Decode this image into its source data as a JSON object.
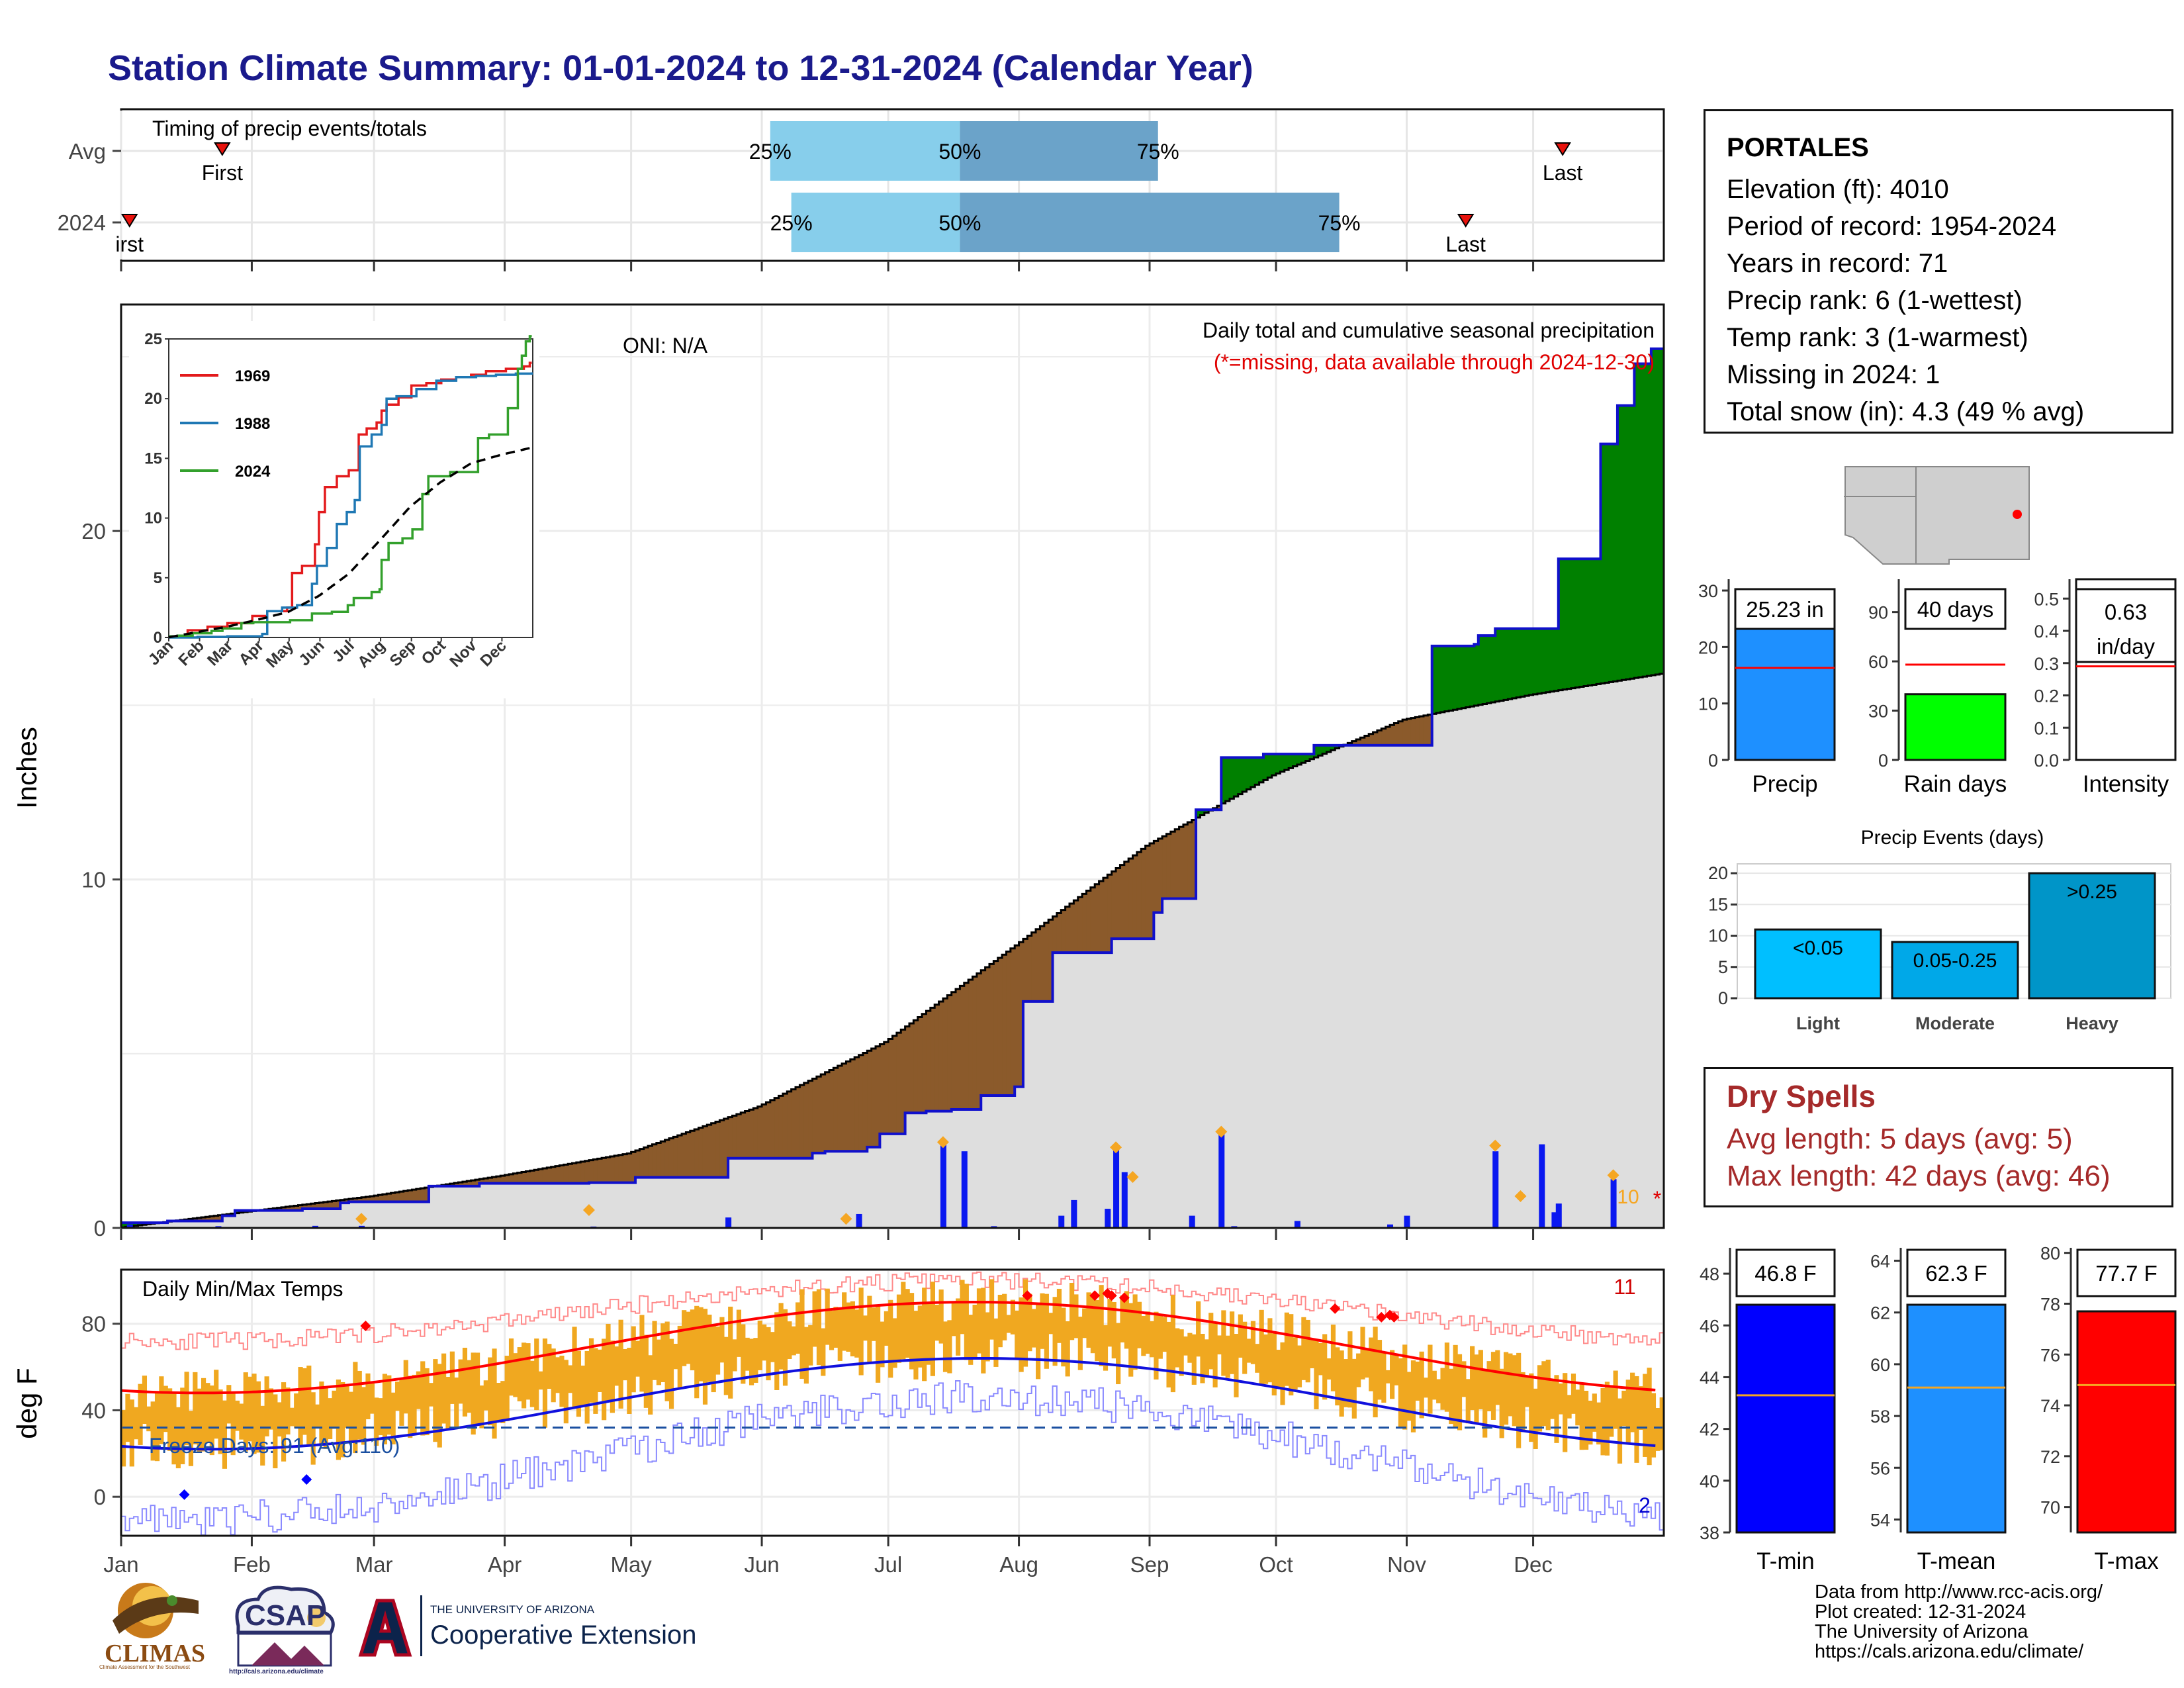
{
  "title": "Station Climate Summary: 01-01-2024 to 12-31-2024 (Calendar Year)",
  "months": [
    "Jan",
    "Feb",
    "Mar",
    "Apr",
    "May",
    "Jun",
    "Jul",
    "Aug",
    "Sep",
    "Oct",
    "Nov",
    "Dec"
  ],
  "timing": {
    "label": "Timing of precip events/totals",
    "rows": [
      "Avg",
      "2024"
    ],
    "avg": {
      "first_doy": 25,
      "last_doy": 343,
      "p25_doy": 155,
      "p50_doy": 200,
      "p75_doy": 247,
      "p25": "25%",
      "p50": "50%",
      "p75": "75%",
      "first": "First",
      "last": "Last"
    },
    "y2024": {
      "first_doy": 3,
      "last_doy": 320,
      "p25_doy": 160,
      "p50_doy": 200,
      "p75_doy": 290,
      "p25": "25%",
      "p50": "50%",
      "p75": "75%",
      "first": "irst",
      "last": "Last"
    },
    "colors": {
      "light": "#87ceeb",
      "dark": "#6ba3c9",
      "marker": "#e8120c"
    }
  },
  "precip": {
    "ylabel": "Inches",
    "oni": "ONI: N/A",
    "label1": "Daily total and cumulative seasonal precipitation",
    "label2": "(*=missing, data available through 2024-12-30)",
    "extreme_count": "10",
    "missing_mark": "*",
    "colors": {
      "cum": "#008000",
      "avg": "#dedede",
      "daily": "#0a18f0",
      "orange": "#f5a623",
      "line": "#1010cc"
    }
  },
  "inset": {
    "legend": [
      "1969",
      "1988",
      "2024"
    ],
    "colors": {
      "1969": "#e31a1c",
      "1988": "#1f78b4",
      "2024": "#33a02c"
    },
    "months": [
      "Jan",
      "Feb",
      "Mar",
      "Apr",
      "May",
      "Jun",
      "Jul",
      "Aug",
      "Sep",
      "Oct",
      "Nov",
      "Dec"
    ]
  },
  "temps": {
    "ylabel": "deg F",
    "label": "Daily Min/Max Temps",
    "freeze": "Freeze Days: 91 (Avg:110)",
    "hot_count": "11",
    "cold_count": "2",
    "colors": {
      "bar": "#f0a820",
      "avgmax": "#ff0000",
      "avgmin": "#1010dd",
      "recmax": "#ff8a8a",
      "recmin": "#8a8aff",
      "freeze": "#1a4fa0"
    }
  },
  "station": {
    "name": "PORTALES",
    "lines": [
      "Elevation (ft): 4010",
      "Period of record: 1954-2024",
      "Years in record: 71",
      "Precip rank: 6 (1-wettest)",
      "Temp rank: 3 (1-warmest)",
      "Missing in 2024: 1",
      "Total snow (in): 4.3 (49 % avg)"
    ]
  },
  "summary_bars": [
    {
      "label": "Precip",
      "value_text": "25.23 in",
      "value": 25.23,
      "avg": 16.3,
      "ymax": 32,
      "ticks": [
        0,
        10,
        20,
        30
      ],
      "color": "#1e90ff"
    },
    {
      "label": "Rain days",
      "value_text": "40 days",
      "value": 40,
      "avg": 58,
      "ymax": 110,
      "ticks": [
        0,
        30,
        60,
        90
      ],
      "color": "#00ff00"
    },
    {
      "label": "Intensity",
      "value_text": "0.63",
      "value_text2": "in/day",
      "value": 0.63,
      "avg": 0.29,
      "ymax": 0.56,
      "ticks": [
        0.0,
        0.1,
        0.2,
        0.3,
        0.4,
        0.5
      ],
      "color": "#ffffff"
    }
  ],
  "events": {
    "title": "Precip Events (days)",
    "bars": [
      {
        "label": "Light",
        "tag": "<0.05",
        "value": 11,
        "color": "#00bfff"
      },
      {
        "label": "Moderate",
        "tag": "0.05-0.25",
        "value": 9,
        "color": "#00a8e8"
      },
      {
        "label": "Heavy",
        "tag": ">0.25",
        "value": 20,
        "color": "#0095c8"
      }
    ],
    "ticks": [
      0,
      5,
      10,
      15,
      20
    ]
  },
  "dry_spells": {
    "title": "Dry Spells",
    "avg_line": "Avg length: 5 days (avg: 5)",
    "max_line": "Max length: 42 days (avg: 46)"
  },
  "temp_bars": [
    {
      "label": "T-min",
      "value_text": "46.8 F",
      "value": 46.8,
      "avg": 43.3,
      "ymin": 38,
      "ymax": 49,
      "ticks": [
        38,
        40,
        42,
        44,
        46,
        48
      ],
      "color": "#0000ff"
    },
    {
      "label": "T-mean",
      "value_text": "62.3 F",
      "value": 62.3,
      "avg": 59.1,
      "ymin": 53.5,
      "ymax": 64.5,
      "ticks": [
        54,
        56,
        58,
        60,
        62,
        64
      ],
      "color": "#1e90ff"
    },
    {
      "label": "T-max",
      "value_text": "77.7 F",
      "value": 77.7,
      "avg": 74.8,
      "ymin": 69,
      "ymax": 80.2,
      "ticks": [
        70,
        72,
        74,
        76,
        78,
        80
      ],
      "color": "#ff0000"
    }
  ],
  "footer": [
    "Data from http://www.rcc-acis.org/",
    "Plot created: 12-31-2024",
    "The University of Arizona",
    "https://cals.arizona.edu/climate/"
  ],
  "logos": {
    "climas": "CLIMAS",
    "climas_sub": "Climate Assessment for the Southwest",
    "csap": "CSAP",
    "csap_url": "http://cals.arizona.edu/climate",
    "ua_small": "THE UNIVERSITY OF ARIZONA",
    "ua_big": "Cooperative Extension"
  }
}
